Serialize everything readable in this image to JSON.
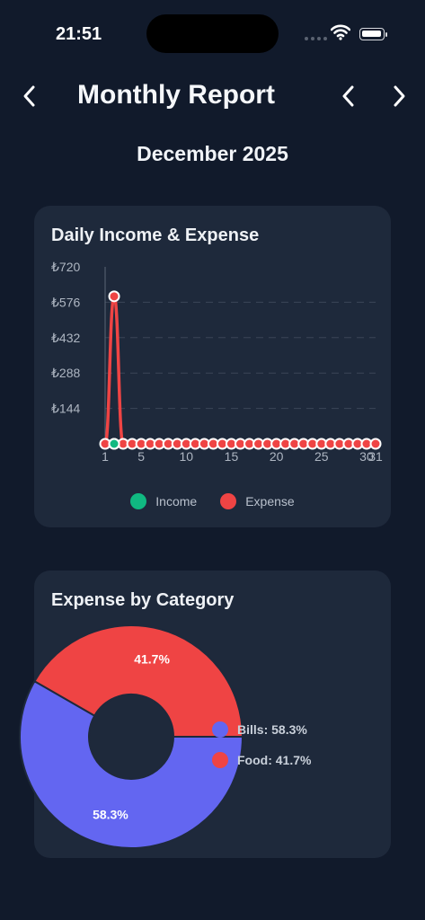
{
  "status": {
    "time": "21:51"
  },
  "header": {
    "title": "Monthly Report",
    "month": "December 2025"
  },
  "icons": {
    "back": "chevron-left-icon",
    "prev": "chevron-left-icon",
    "next": "chevron-right-icon"
  },
  "colors": {
    "income": "#10b981",
    "expense": "#ef4444",
    "bills": "#6366f1",
    "food": "#ef4444"
  },
  "line_card": {
    "title": "Daily Income & Expense",
    "legend": [
      {
        "label": "Income",
        "color": "#10b981"
      },
      {
        "label": "Expense",
        "color": "#ef4444"
      }
    ]
  },
  "pie_card": {
    "title": "Expense by Category",
    "legend": [
      {
        "label": "Bills: 58.3%",
        "color": "#6366f1"
      },
      {
        "label": "Food: 41.7%",
        "color": "#ef4444"
      }
    ]
  },
  "chart_data": [
    {
      "type": "line",
      "title": "Daily Income & Expense",
      "xlabel": "",
      "ylabel": "",
      "ylim": [
        0,
        720
      ],
      "y_ticks": [
        "₺144",
        "₺288",
        "₺432",
        "₺576",
        "₺720"
      ],
      "y_tick_values": [
        144,
        288,
        432,
        576,
        720
      ],
      "x_ticks": [
        "1",
        "5",
        "10",
        "15",
        "20",
        "25",
        "30",
        "31"
      ],
      "x_tick_values": [
        1,
        5,
        10,
        15,
        20,
        25,
        30,
        31
      ],
      "grid": "horizontal dashed",
      "legend_position": "bottom",
      "x": [
        1,
        2,
        3,
        4,
        5,
        6,
        7,
        8,
        9,
        10,
        11,
        12,
        13,
        14,
        15,
        16,
        17,
        18,
        19,
        20,
        21,
        22,
        23,
        24,
        25,
        26,
        27,
        28,
        29,
        30,
        31
      ],
      "series": [
        {
          "name": "Income",
          "color": "#10b981",
          "values": [
            0,
            0,
            0,
            0,
            0,
            0,
            0,
            0,
            0,
            0,
            0,
            0,
            0,
            0,
            0,
            0,
            0,
            0,
            0,
            0,
            0,
            0,
            0,
            0,
            0,
            0,
            0,
            0,
            0,
            0,
            0
          ]
        },
        {
          "name": "Expense",
          "color": "#ef4444",
          "values": [
            0,
            600,
            0,
            0,
            0,
            0,
            0,
            0,
            0,
            0,
            0,
            0,
            0,
            0,
            0,
            0,
            0,
            0,
            0,
            0,
            0,
            0,
            0,
            0,
            0,
            0,
            0,
            0,
            0,
            0,
            0
          ]
        }
      ]
    },
    {
      "type": "pie",
      "title": "Expense by Category",
      "donut": true,
      "legend_position": "right",
      "categories": [
        "Bills",
        "Food"
      ],
      "values": [
        58.3,
        41.7
      ],
      "labels": [
        "58.3%",
        "41.7%"
      ],
      "colors": [
        "#6366f1",
        "#ef4444"
      ]
    }
  ]
}
